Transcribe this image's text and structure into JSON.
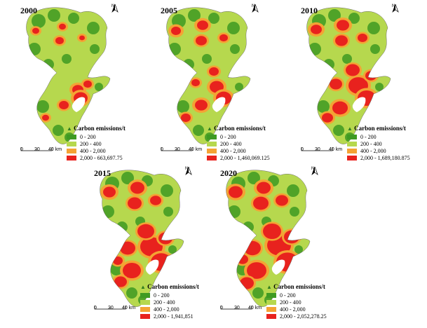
{
  "colors": {
    "c1": "#3e9a22",
    "c2": "#b6d84e",
    "c3": "#f4a334",
    "c4": "#e8221e"
  },
  "panels": [
    {
      "year": "2000",
      "legend_title": "Carbon emissions/t",
      "legend": [
        "0 - 200",
        "200 - 400",
        "400 - 2,000",
        "2,000 - 663,697.75"
      ],
      "scale": [
        "0",
        "20",
        "40 km"
      ],
      "north": "N"
    },
    {
      "year": "2005",
      "legend_title": "Carbon emissions/t",
      "legend": [
        "0 - 200",
        "200 - 400",
        "400 - 2,000",
        "2,000 - 1,460,069.125"
      ],
      "scale": [
        "0",
        "20",
        "40 km"
      ],
      "north": "N"
    },
    {
      "year": "2010",
      "legend_title": "Carbon emissions/t",
      "legend": [
        "0 - 200",
        "200 - 400",
        "400 - 2,000",
        "2,000 - 1,689,180.875"
      ],
      "scale": [
        "0",
        "20",
        "40 km"
      ],
      "north": "N"
    },
    {
      "year": "2015",
      "legend_title": "Carbon emissions/t",
      "legend": [
        "0 - 200",
        "200 - 400",
        "400 - 2,000",
        "2,000 - 1,941,851"
      ],
      "scale": [
        "0",
        "20",
        "40 km"
      ],
      "north": "N"
    },
    {
      "year": "2020",
      "legend_title": "Carbon emissions/t",
      "legend": [
        "0 - 200",
        "200 - 400",
        "400 - 2,000",
        "2,000 - 2,052,278.25"
      ],
      "scale": [
        "0",
        "20",
        "40 km"
      ],
      "north": "N"
    }
  ]
}
